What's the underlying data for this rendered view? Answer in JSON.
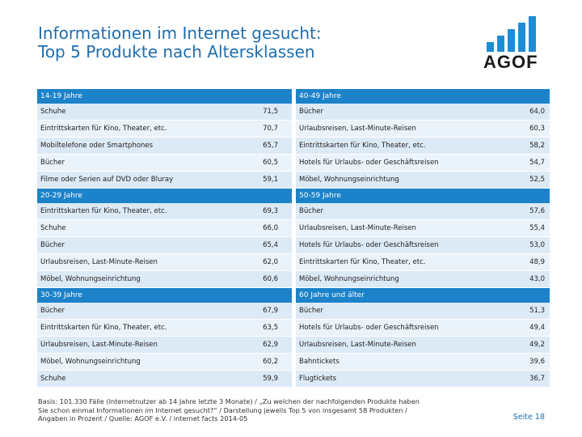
{
  "title": {
    "line1": "Informationen im Internet gesucht:",
    "line2": "Top 5 Produkte nach Altersklassen"
  },
  "logo": {
    "text": "AGOF",
    "color": "#1e8dd6"
  },
  "colors": {
    "header": "#1c82c9",
    "row": "#dceaf6",
    "title": "#1f6dad"
  },
  "groups": {
    "left": [
      {
        "label": "14-19 Jahre",
        "rows": [
          {
            "product": "Schuhe",
            "value": "71,5"
          },
          {
            "product": "Eintrittskarten für Kino, Theater, etc.",
            "value": "70,7"
          },
          {
            "product": "Mobiltelefone oder Smartphones",
            "value": "65,7"
          },
          {
            "product": "Bücher",
            "value": "60,5"
          },
          {
            "product": "Filme oder Serien auf DVD oder Bluray",
            "value": "59,1"
          }
        ]
      },
      {
        "label": "20-29 Jahre",
        "rows": [
          {
            "product": "Eintrittskarten für Kino, Theater, etc.",
            "value": "69,3"
          },
          {
            "product": "Schuhe",
            "value": "66,0"
          },
          {
            "product": "Bücher",
            "value": "65,4"
          },
          {
            "product": "Urlaubsreisen, Last-Minute-Reisen",
            "value": "62,0"
          },
          {
            "product": "Möbel, Wohnungseinrichtung",
            "value": "60,6"
          }
        ]
      },
      {
        "label": "30-39 Jahre",
        "rows": [
          {
            "product": "Bücher",
            "value": "67,9"
          },
          {
            "product": "Eintrittskarten für Kino, Theater, etc.",
            "value": "63,5"
          },
          {
            "product": "Urlaubsreisen, Last-Minute-Reisen",
            "value": "62,9"
          },
          {
            "product": "Möbel, Wohnungseinrichtung",
            "value": "60,2"
          },
          {
            "product": "Schuhe",
            "value": "59,9"
          }
        ]
      }
    ],
    "right": [
      {
        "label": "40-49 Jahre",
        "rows": [
          {
            "product": "Bücher",
            "value": "64,0"
          },
          {
            "product": "Urlaubsreisen, Last-Minute-Reisen",
            "value": "60,3"
          },
          {
            "product": "Eintrittskarten für Kino, Theater, etc.",
            "value": "58,2"
          },
          {
            "product": "Hotels für Urlaubs- oder Geschäftsreisen",
            "value": "54,7"
          },
          {
            "product": "Möbel, Wohnungseinrichtung",
            "value": "52,5"
          }
        ]
      },
      {
        "label": "50-59 Jahre",
        "rows": [
          {
            "product": "Bücher",
            "value": "57,6"
          },
          {
            "product": "Urlaubsreisen, Last-Minute-Reisen",
            "value": "55,4"
          },
          {
            "product": "Hotels für Urlaubs- oder Geschäftsreisen",
            "value": "53,0"
          },
          {
            "product": "Eintrittskarten für Kino, Theater, etc.",
            "value": "48,9"
          },
          {
            "product": "Möbel, Wohnungseinrichtung",
            "value": "43,0"
          }
        ]
      },
      {
        "label": "60 Jahre und älter",
        "rows": [
          {
            "product": "Bücher",
            "value": "51,3"
          },
          {
            "product": "Hotels für Urlaubs- oder Geschäftsreisen",
            "value": "49,4"
          },
          {
            "product": "Urlaubsreisen, Last-Minute-Reisen",
            "value": "49,2"
          },
          {
            "product": "Bahntickets",
            "value": "39,6"
          },
          {
            "product": "Flugtickets",
            "value": "36,7"
          }
        ]
      }
    ]
  },
  "footer": {
    "line1": "Basis: 101.330 Fälle (Internetnutzer ab 14 Jahre letzte 3 Monate) / „Zu welchen der nachfolgenden Produkte haben",
    "line2": "Sie schon einmal Informationen im Internet gesucht?“ / Darstellung jeweils Top 5 von insgesamt 58 Produkten /",
    "line3": "Angaben in Prozent / Quelle: AGOF e.V. / internet facts 2014-05"
  },
  "page_number": "Seite 18"
}
